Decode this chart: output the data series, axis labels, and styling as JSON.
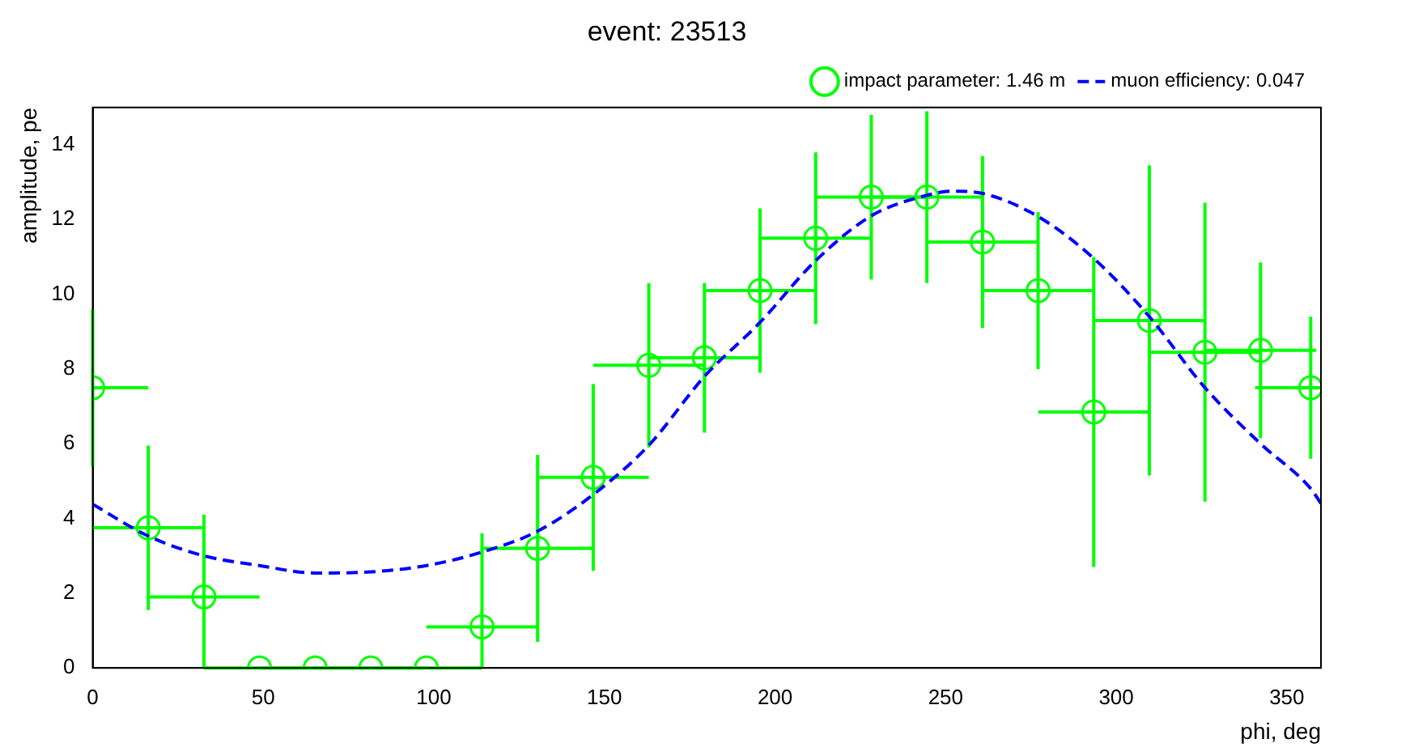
{
  "chart_data": {
    "type": "scatter",
    "title": "event: 23513",
    "xlabel": "phi, deg",
    "ylabel": "amplitude, pe",
    "xlim": [
      0,
      360
    ],
    "xticks": [
      0,
      50,
      100,
      150,
      200,
      250,
      300,
      350
    ],
    "ylim": [
      0,
      15
    ],
    "yticks": [
      0,
      2,
      4,
      6,
      8,
      10,
      12,
      14
    ],
    "grid": false,
    "legend": "top right",
    "series": [
      {
        "name": "impact parameter: 1.46 m",
        "color": "#00ff00",
        "marker": "circle",
        "x": [
          0,
          16.3,
          32.6,
          48.9,
          65.2,
          81.5,
          97.8,
          114.1,
          130.4,
          146.7,
          163,
          179.3,
          195.6,
          211.9,
          228.2,
          244.5,
          260.8,
          277.1,
          293.4,
          309.7,
          326,
          342.3,
          357
        ],
        "values": [
          7.5,
          3.75,
          1.9,
          0,
          0,
          0,
          0,
          1.1,
          3.2,
          5.1,
          8.1,
          8.3,
          10.1,
          11.5,
          12.6,
          12.6,
          11.4,
          10.1,
          6.85,
          9.3,
          8.45,
          8.5,
          7.5
        ],
        "errors": [
          [
            5.4,
            9.6
          ],
          [
            1.55,
            5.95
          ],
          [
            0,
            4.1
          ],
          null,
          null,
          null,
          null,
          [
            0,
            3.6
          ],
          [
            0.7,
            5.7
          ],
          [
            2.6,
            7.6
          ],
          [
            5.9,
            10.3
          ],
          [
            6.3,
            10.3
          ],
          [
            7.9,
            12.3
          ],
          [
            9.2,
            13.8
          ],
          [
            10.4,
            14.8
          ],
          [
            10.3,
            14.9
          ],
          [
            9.1,
            13.7
          ],
          [
            8.0,
            12.2
          ],
          [
            2.7,
            11.0
          ],
          [
            5.15,
            13.45
          ],
          [
            4.45,
            12.45
          ],
          [
            6.15,
            10.85
          ],
          [
            5.6,
            9.4
          ]
        ],
        "xerrors": [
          [
            0,
            16.3
          ],
          [
            0,
            32.6
          ],
          [
            16.3,
            48.9
          ],
          [
            32.6,
            65.2
          ],
          [
            48.9,
            81.5
          ],
          [
            65.2,
            97.8
          ],
          [
            81.5,
            114.1
          ],
          [
            97.8,
            130.4
          ],
          [
            114.1,
            146.7
          ],
          [
            130.4,
            163
          ],
          [
            146.7,
            179.3
          ],
          [
            163,
            195.6
          ],
          [
            179.3,
            211.9
          ],
          [
            195.6,
            228.2
          ],
          [
            211.9,
            244.5
          ],
          [
            228.2,
            260.8
          ],
          [
            244.5,
            277.1
          ],
          [
            260.8,
            293.4
          ],
          [
            277.1,
            309.7
          ],
          [
            293.4,
            326
          ],
          [
            309.7,
            342.3
          ],
          [
            326,
            358.6
          ],
          [
            340.7,
            360
          ]
        ]
      },
      {
        "name": "muon efficiency: 0.047",
        "type": "line",
        "color": "#0000ff",
        "marker": "none",
        "line_style": "dashed",
        "x": [
          0,
          16.3,
          32.6,
          48.9,
          65.2,
          81.5,
          97.8,
          114.1,
          130.4,
          146.7,
          163,
          179.3,
          195.6,
          211.9,
          228.2,
          244.5,
          252,
          260.8,
          277.1,
          293.4,
          309.7,
          326,
          342.3,
          357,
          360
        ],
        "values": [
          4.38,
          3.53,
          3.0,
          2.74,
          2.54,
          2.57,
          2.74,
          3.1,
          3.66,
          4.64,
          5.96,
          7.8,
          9.25,
          10.9,
          12.1,
          12.65,
          12.76,
          12.7,
          12.08,
          10.96,
          9.4,
          7.5,
          6.0,
          4.8,
          4.4
        ]
      }
    ]
  }
}
